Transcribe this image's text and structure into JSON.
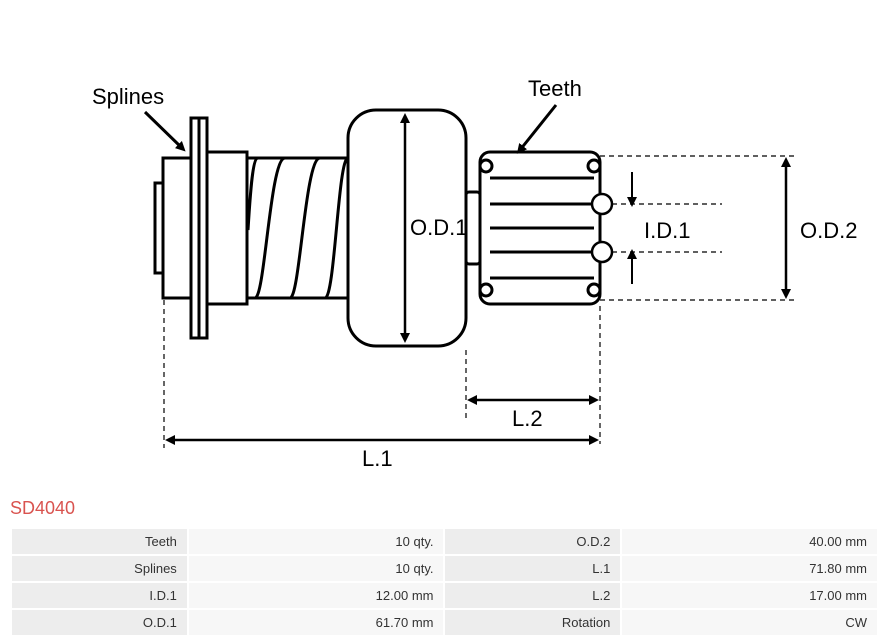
{
  "part_number": "SD4040",
  "diagram": {
    "labels": {
      "splines": "Splines",
      "teeth": "Teeth",
      "od1": "O.D.1",
      "od2": "O.D.2",
      "id1": "I.D.1",
      "l1": "L.1",
      "l2": "L.2"
    },
    "colors": {
      "stroke": "#000000",
      "background": "#ffffff",
      "dash": "#000000"
    },
    "stroke_width": 3,
    "thin_stroke": 1.2,
    "font_size": 22
  },
  "specs": [
    {
      "label1": "Teeth",
      "value1": "10 qty.",
      "label2": "O.D.2",
      "value2": "40.00 mm"
    },
    {
      "label1": "Splines",
      "value1": "10 qty.",
      "label2": "L.1",
      "value2": "71.80 mm"
    },
    {
      "label1": "I.D.1",
      "value1": "12.00 mm",
      "label2": "L.2",
      "value2": "17.00 mm"
    },
    {
      "label1": "O.D.1",
      "value1": "61.70 mm",
      "label2": "Rotation",
      "value2": "CW"
    }
  ]
}
